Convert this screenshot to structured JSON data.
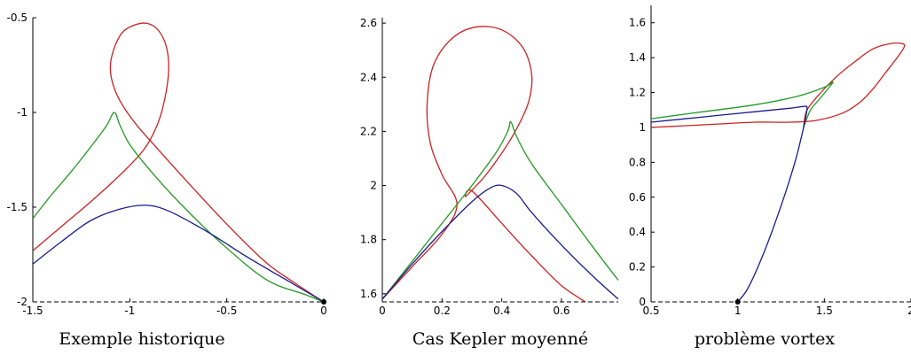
{
  "chart_data": [
    {
      "type": "line",
      "title": "Exemple historique",
      "xlim": [
        -1.5,
        0
      ],
      "ylim": [
        -2,
        -0.5
      ],
      "xticks": [
        "-1.5",
        "-1",
        "-0.5",
        "0"
      ],
      "yticks": [
        "-2",
        "-1.5",
        "-1",
        "-0.5"
      ],
      "grid": false,
      "series": [
        {
          "color": "#cc2222",
          "x": [
            -1.5,
            -1.35,
            -1.2,
            -1.05,
            -0.93,
            -0.86,
            -0.82,
            -0.8,
            -0.81,
            -0.85,
            -0.91,
            -0.98,
            -1.04,
            -1.08,
            -1.1,
            -1.09,
            -1.05,
            -0.97,
            -0.85,
            -0.7,
            -0.5,
            -0.3,
            -0.15,
            0
          ],
          "y": [
            -1.73,
            -1.6,
            -1.47,
            -1.33,
            -1.2,
            -1.07,
            -0.93,
            -0.78,
            -0.66,
            -0.57,
            -0.53,
            -0.54,
            -0.58,
            -0.66,
            -0.75,
            -0.84,
            -0.94,
            -1.06,
            -1.2,
            -1.37,
            -1.59,
            -1.79,
            -1.9,
            -2
          ]
        },
        {
          "color": "#229922",
          "x": [
            -1.5,
            -1.4,
            -1.3,
            -1.2,
            -1.12,
            -1.08,
            -1.05,
            -1.0,
            -0.9,
            -0.75,
            -0.55,
            -0.3,
            -0.1,
            0
          ],
          "y": [
            -1.56,
            -1.43,
            -1.31,
            -1.18,
            -1.07,
            -1.0,
            -1.07,
            -1.17,
            -1.3,
            -1.47,
            -1.67,
            -1.88,
            -1.96,
            -2
          ]
        },
        {
          "color": "#1a1a8c",
          "x": [
            -1.5,
            -1.35,
            -1.2,
            -1.05,
            -0.92,
            -0.8,
            -0.6,
            -0.4,
            -0.2,
            0
          ],
          "y": [
            -1.8,
            -1.68,
            -1.57,
            -1.51,
            -1.49,
            -1.52,
            -1.63,
            -1.76,
            -1.88,
            -2
          ]
        }
      ],
      "points": [
        {
          "x": 0,
          "y": -2
        }
      ]
    },
    {
      "type": "line",
      "title": "Cas Kepler moyenné",
      "xlim": [
        0,
        0.79
      ],
      "ylim": [
        1.57,
        2.62
      ],
      "xticks": [
        "0",
        "0.2",
        "0.4",
        "0.6"
      ],
      "yticks": [
        "1.6",
        "1.8",
        "2",
        "2.2",
        "2.4",
        "2.6"
      ],
      "grid": false,
      "series": [
        {
          "color": "#cc2222",
          "x": [
            0,
            0.1,
            0.2,
            0.25,
            0.2,
            0.16,
            0.15,
            0.17,
            0.23,
            0.31,
            0.4,
            0.47,
            0.5,
            0.49,
            0.45,
            0.4,
            0.34,
            0.28,
            0.3,
            0.4,
            0.5,
            0.6,
            0.68
          ],
          "y": [
            1.58,
            1.7,
            1.82,
            1.93,
            2.04,
            2.16,
            2.3,
            2.44,
            2.54,
            2.585,
            2.575,
            2.51,
            2.41,
            2.31,
            2.21,
            2.12,
            2.03,
            1.96,
            1.98,
            1.86,
            1.74,
            1.63,
            1.57
          ]
        },
        {
          "color": "#229922",
          "x": [
            0,
            0.1,
            0.2,
            0.3,
            0.38,
            0.42,
            0.43,
            0.45,
            0.5,
            0.6,
            0.7,
            0.79
          ],
          "y": [
            1.58,
            1.72,
            1.86,
            2.0,
            2.12,
            2.2,
            2.235,
            2.18,
            2.08,
            1.93,
            1.78,
            1.65
          ]
        },
        {
          "color": "#1a1a8c",
          "x": [
            0,
            0.1,
            0.2,
            0.3,
            0.36,
            0.4,
            0.45,
            0.5,
            0.6,
            0.7,
            0.79
          ],
          "y": [
            1.58,
            1.71,
            1.83,
            1.94,
            1.99,
            2.0,
            1.97,
            1.9,
            1.78,
            1.67,
            1.58
          ]
        }
      ]
    },
    {
      "type": "line",
      "title": "problème vortex",
      "xlim": [
        0.5,
        2
      ],
      "ylim": [
        0,
        1.7
      ],
      "xticks": [
        "0.5",
        "1",
        "1.5",
        "2"
      ],
      "yticks": [
        "0",
        "0.2",
        "0.4",
        "0.6",
        "0.8",
        "1",
        "1.2",
        "1.4",
        "1.6"
      ],
      "grid": false,
      "series": [
        {
          "color": "#cc2222",
          "x": [
            0.5,
            0.7,
            0.9,
            1.1,
            1.3,
            1.45,
            1.6,
            1.7,
            1.78,
            1.85,
            1.92,
            1.96,
            1.95,
            1.88,
            1.78,
            1.68,
            1.58,
            1.48,
            1.4,
            1.38
          ],
          "y": [
            1.0,
            1.01,
            1.02,
            1.03,
            1.03,
            1.04,
            1.08,
            1.14,
            1.22,
            1.31,
            1.4,
            1.46,
            1.48,
            1.48,
            1.45,
            1.38,
            1.3,
            1.2,
            1.1,
            1.0
          ]
        },
        {
          "color": "#229922",
          "x": [
            0.5,
            0.8,
            1.1,
            1.35,
            1.5,
            1.55,
            1.52,
            1.47,
            1.42,
            1.38
          ],
          "y": [
            1.05,
            1.09,
            1.13,
            1.18,
            1.23,
            1.26,
            1.22,
            1.16,
            1.1,
            1.0
          ]
        },
        {
          "color": "#1a1a8c",
          "x": [
            0.5,
            0.8,
            1.1,
            1.3,
            1.38,
            1.4,
            1.38,
            1.33,
            1.25,
            1.15,
            1.06,
            1.0
          ],
          "y": [
            1.03,
            1.06,
            1.09,
            1.11,
            1.12,
            1.11,
            1.0,
            0.8,
            0.55,
            0.28,
            0.08,
            0.0
          ]
        }
      ],
      "points": [
        {
          "x": 1,
          "y": 0
        }
      ]
    }
  ]
}
